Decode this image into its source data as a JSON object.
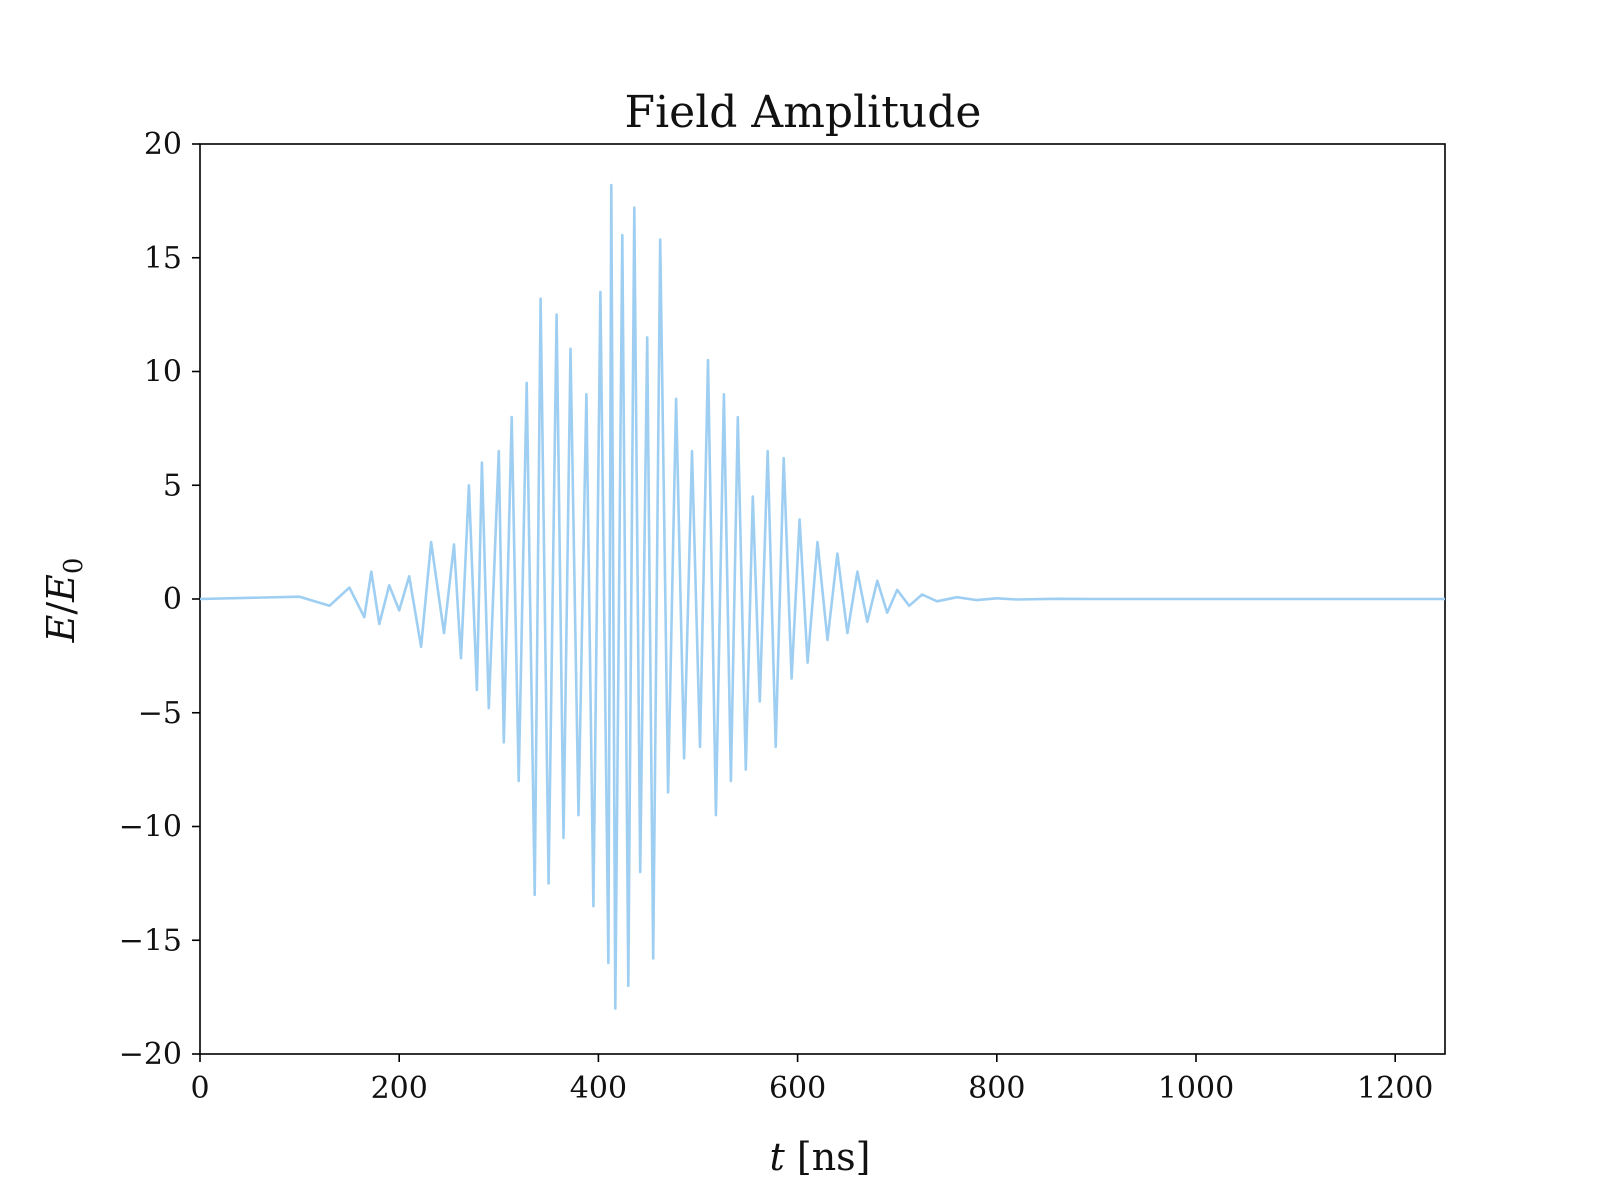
{
  "chart_data": {
    "type": "line",
    "title": "Field Amplitude",
    "xlabel": "t [ns]",
    "xlabel_var": "t",
    "xlabel_unit": "[ns]",
    "ylabel": "E/E0",
    "ylabel_parts": {
      "num": "E",
      "slash": "/",
      "den": "E",
      "sub": "0"
    },
    "xlim": [
      0,
      1250
    ],
    "ylim": [
      -20,
      20
    ],
    "x_ticks": [
      0,
      200,
      400,
      600,
      800,
      1000,
      1200
    ],
    "y_ticks": [
      -20,
      -15,
      -10,
      -5,
      0,
      5,
      10,
      15,
      20
    ],
    "x_tick_labels": [
      "0",
      "200",
      "400",
      "600",
      "800",
      "1000",
      "1200"
    ],
    "y_tick_labels": [
      "−20",
      "−15",
      "−10",
      "−5",
      "0",
      "5",
      "10",
      "15",
      "20"
    ],
    "grid": false,
    "legend": false,
    "line_color": "#9ecff2",
    "series": [
      {
        "x": [
          0,
          100,
          130,
          150,
          165,
          172,
          180,
          190,
          200,
          210,
          222,
          232,
          245,
          255,
          262,
          270,
          278,
          283,
          290,
          300,
          305,
          313,
          320,
          328,
          336,
          342,
          350,
          358,
          365,
          372,
          380,
          388,
          395,
          402,
          410,
          413,
          417,
          424,
          430,
          436,
          442,
          449,
          455,
          462,
          470,
          478,
          486,
          494,
          502,
          510,
          518,
          526,
          533,
          540,
          548,
          555,
          562,
          570,
          578,
          586,
          594,
          602,
          610,
          620,
          630,
          640,
          650,
          660,
          670,
          680,
          690,
          700,
          712,
          725,
          740,
          760,
          780,
          800,
          820,
          860,
          900,
          1250
        ],
        "y": [
          0,
          0.1,
          -0.3,
          0.5,
          -0.8,
          1.2,
          -1.1,
          0.6,
          -0.5,
          1.0,
          -2.1,
          2.5,
          -1.5,
          2.4,
          -2.6,
          5.0,
          -4.0,
          6.0,
          -4.8,
          6.5,
          -6.3,
          8.0,
          -8.0,
          9.5,
          -13.0,
          13.2,
          -12.5,
          12.5,
          -10.5,
          11.0,
          -9.5,
          9.0,
          -13.5,
          13.5,
          -16.0,
          18.2,
          -18.0,
          16.0,
          -17.0,
          17.2,
          -12.0,
          11.5,
          -15.8,
          15.8,
          -8.5,
          8.8,
          -7.0,
          6.5,
          -6.5,
          10.5,
          -9.5,
          9.0,
          -8.0,
          8.0,
          -7.5,
          4.5,
          -4.5,
          6.5,
          -6.5,
          6.2,
          -3.5,
          3.5,
          -2.8,
          2.5,
          -1.8,
          2.0,
          -1.5,
          1.2,
          -1.0,
          0.8,
          -0.6,
          0.4,
          -0.3,
          0.2,
          -0.1,
          0.08,
          -0.05,
          0.03,
          -0.02,
          0.01,
          0,
          0
        ]
      }
    ]
  }
}
